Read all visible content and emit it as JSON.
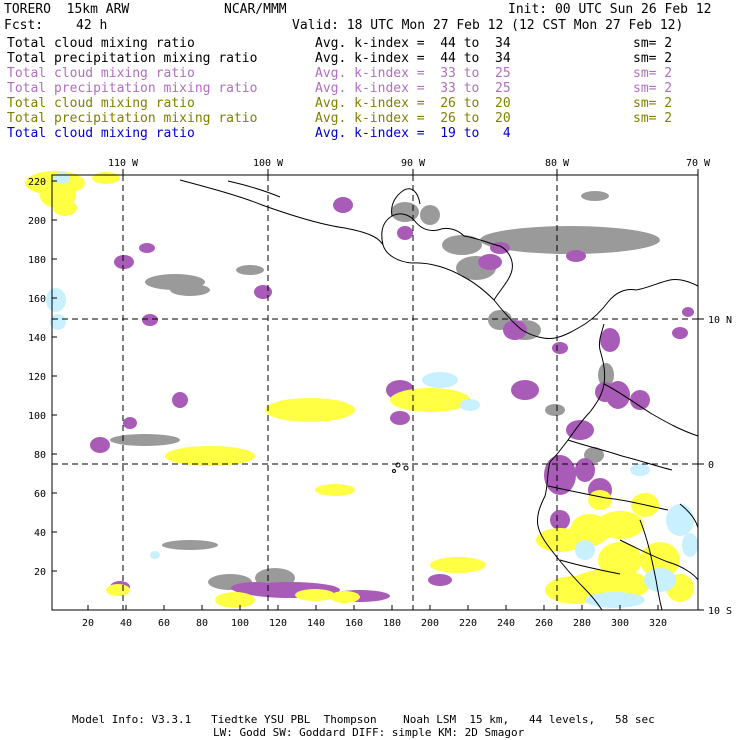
{
  "header": {
    "model": "TORERO  15km ARW",
    "org": "NCAR/MMM",
    "init": "Init: 00 UTC Sun 26 Feb 12",
    "fcst_label": "Fcst:",
    "fcst_value": "42 h",
    "valid": "Valid: 18 UTC Mon 27 Feb 12 (12 CST Mon 27 Feb 12)"
  },
  "legend": [
    {
      "field": "Total cloud mixing ratio",
      "kindex": "Avg. k-index =  44 to  34",
      "sm": "sm= 2",
      "color": "#000000"
    },
    {
      "field": "Total precipitation mixing ratio",
      "kindex": "Avg. k-index =  44 to  34",
      "sm": "sm= 2",
      "color": "#000000"
    },
    {
      "field": "Total cloud mixing ratio",
      "kindex": "Avg. k-index =  33 to  25",
      "sm": "sm= 2",
      "color": "#b070c0"
    },
    {
      "field": "Total precipitation mixing ratio",
      "kindex": "Avg. k-index =  33 to  25",
      "sm": "sm= 2",
      "color": "#b070c0"
    },
    {
      "field": "Total cloud mixing ratio",
      "kindex": "Avg. k-index =  26 to  20",
      "sm": "sm= 2",
      "color": "#808000"
    },
    {
      "field": "Total precipitation mixing ratio",
      "kindex": "Avg. k-index =  26 to  20",
      "sm": "sm= 2",
      "color": "#808000"
    },
    {
      "field": "Total cloud mixing ratio",
      "kindex": "Avg. k-index =  19 to   4",
      "sm": "",
      "color": "#0000cc"
    }
  ],
  "map": {
    "top_lon_labels": [
      "110 W",
      "100 W",
      "90 W",
      "80 W",
      "70 W"
    ],
    "right_lat_labels": [
      "10 N",
      "0",
      "10 S"
    ],
    "y_ticks": [
      "220",
      "200",
      "180",
      "160",
      "140",
      "120",
      "100",
      "80",
      "60",
      "40",
      "20"
    ],
    "x_ticks": [
      "20",
      "40",
      "60",
      "80",
      "100",
      "120",
      "140",
      "160",
      "180",
      "200",
      "220",
      "240",
      "260",
      "280",
      "300",
      "320"
    ],
    "colors": {
      "gray": "#9a9a9a",
      "purple": "#a85cb8",
      "yellow": "#ffff44",
      "cyan": "#c8f0ff",
      "coast": "#000000"
    }
  },
  "footer": {
    "line1": "Model Info: V3.3.1   Tiedtke YSU PBL  Thompson    Noah LSM  15 km,   44 levels,   58 sec",
    "line2": "LW: Godd SW: Goddard DIFF: simple KM: 2D Smagor"
  }
}
